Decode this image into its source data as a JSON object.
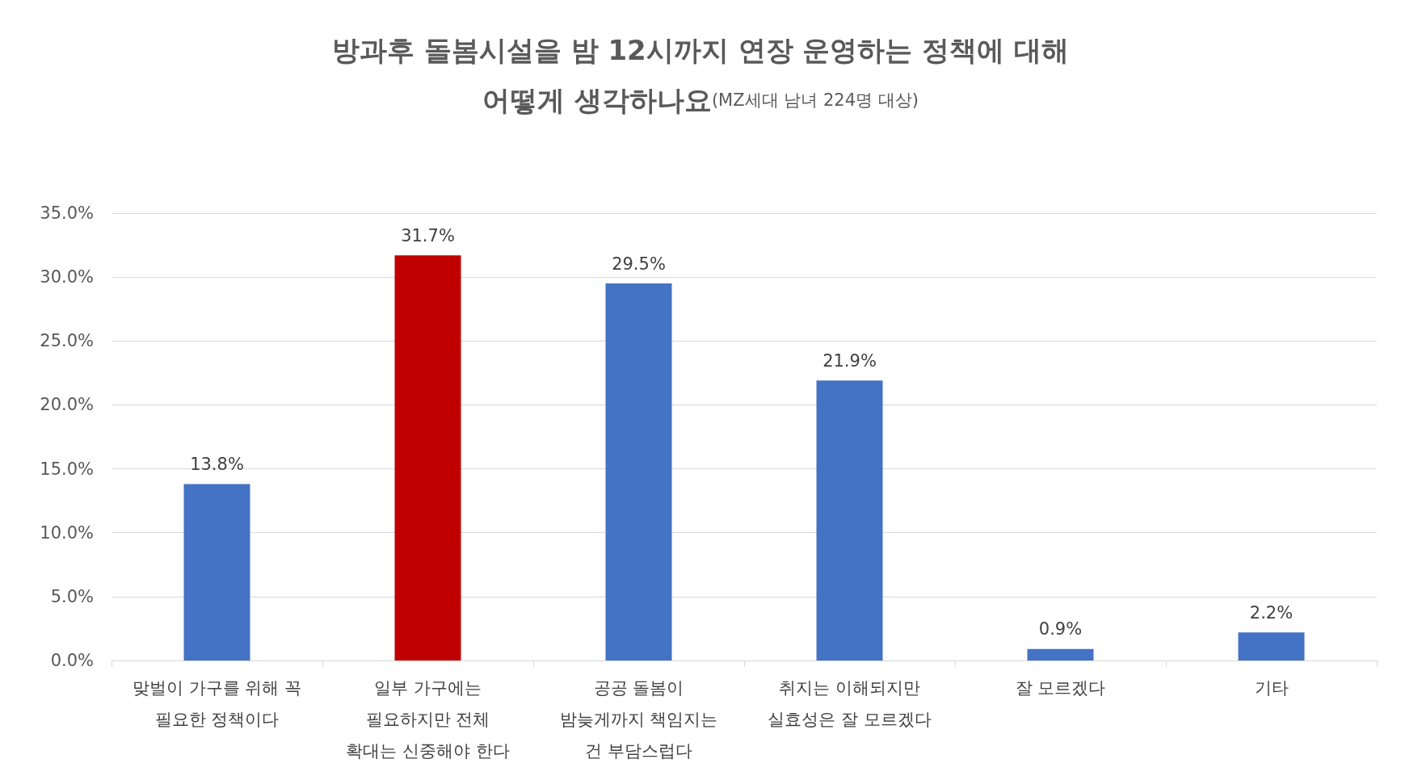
{
  "chart_data": {
    "type": "bar",
    "title": "방과후 돌봄시설을 밤 12시까지 연장 운영하는 정책에 대해\n어떻게 생각하나요",
    "subtitle": "(MZ세대 남녀 224명 대상)",
    "categories": [
      "맞벌이 가구를 위해 꼭\n필요한 정책이다",
      "일부 가구에는\n필요하지만 전체\n확대는 신중해야 한다",
      "공공 돌봄이\n밤늦게까지 책임지는\n건 부담스럽다",
      "취지는 이해되지만\n실효성은 잘 모르겠다",
      "잘 모르겠다",
      "기타"
    ],
    "values": [
      13.8,
      31.7,
      29.5,
      21.9,
      0.9,
      2.2
    ],
    "colors": [
      "#4472c4",
      "#c00000",
      "#4472c4",
      "#4472c4",
      "#4472c4",
      "#4472c4"
    ],
    "value_labels": [
      "13.8%",
      "31.7%",
      "29.5%",
      "21.9%",
      "0.9%",
      "2.2%"
    ],
    "ylim": [
      0,
      35
    ],
    "yticks": [
      {
        "value": 0,
        "label": "0.0%"
      },
      {
        "value": 5,
        "label": "5.0%"
      },
      {
        "value": 10,
        "label": "10.0%"
      },
      {
        "value": 15,
        "label": "15.0%"
      },
      {
        "value": 20,
        "label": "20.0%"
      },
      {
        "value": 25,
        "label": "25.0%"
      },
      {
        "value": 30,
        "label": "30.0%"
      },
      {
        "value": 35,
        "label": "35.0%"
      }
    ],
    "grid": "y"
  }
}
